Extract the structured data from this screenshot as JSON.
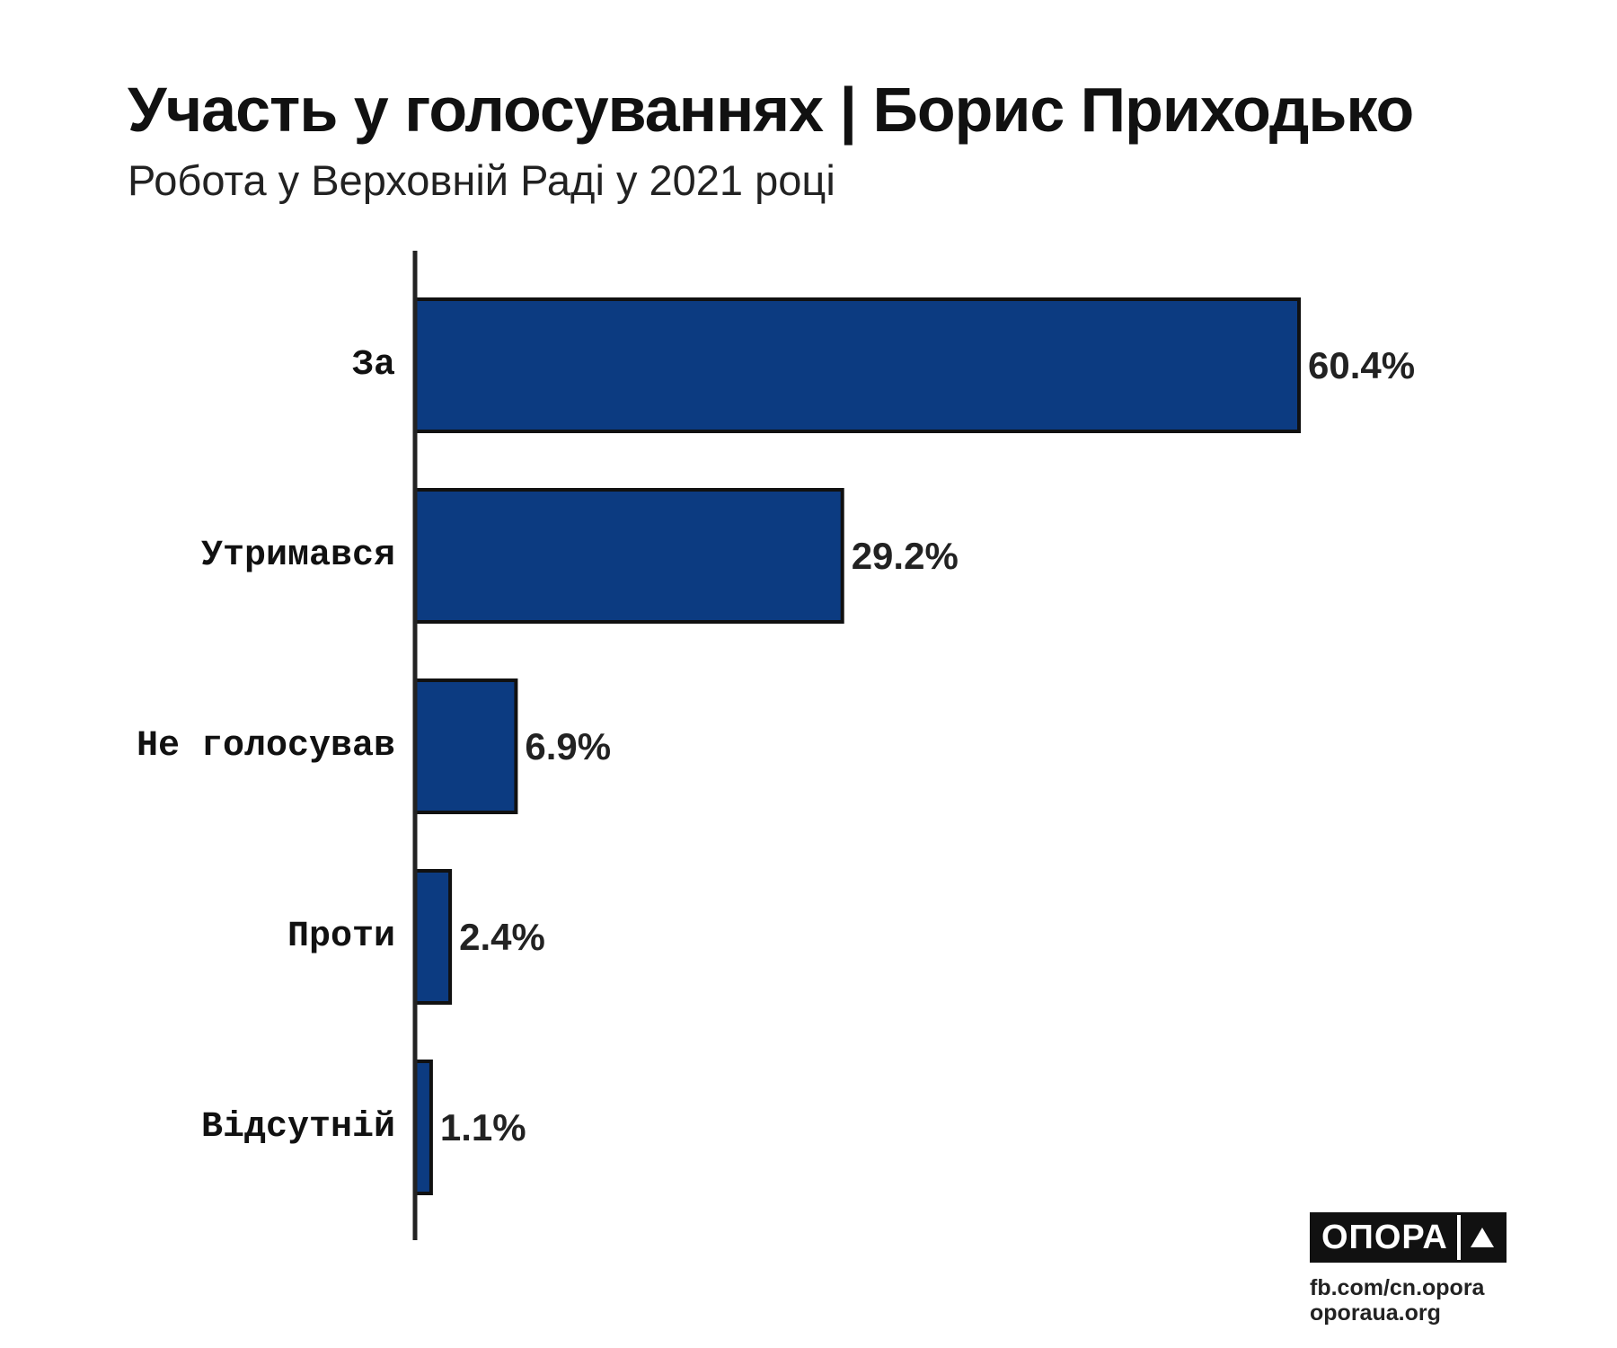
{
  "header": {
    "title": "Участь у голосуваннях | Борис Приходько",
    "subtitle": "Робота у Верховній Раді у 2021 році"
  },
  "chart_data": {
    "type": "bar",
    "orientation": "horizontal",
    "categories": [
      "За",
      "Утримався",
      "Не голосував",
      "Проти",
      "Відсутній"
    ],
    "values": [
      60.4,
      29.2,
      6.9,
      2.4,
      1.1
    ],
    "value_labels": [
      "60.4%",
      "29.2%",
      "6.9%",
      "2.4%",
      "1.1%"
    ],
    "unit": "%",
    "xlim": [
      0,
      60.4
    ],
    "bar_color": "#0c3b81",
    "bar_edge_color": "#111111",
    "grid": false,
    "legend": "none"
  },
  "branding": {
    "logo_text": "ОПОРА",
    "logo_icon": "triangle-icon",
    "links": [
      "fb.com/cn.opora",
      "oporaua.org"
    ]
  }
}
